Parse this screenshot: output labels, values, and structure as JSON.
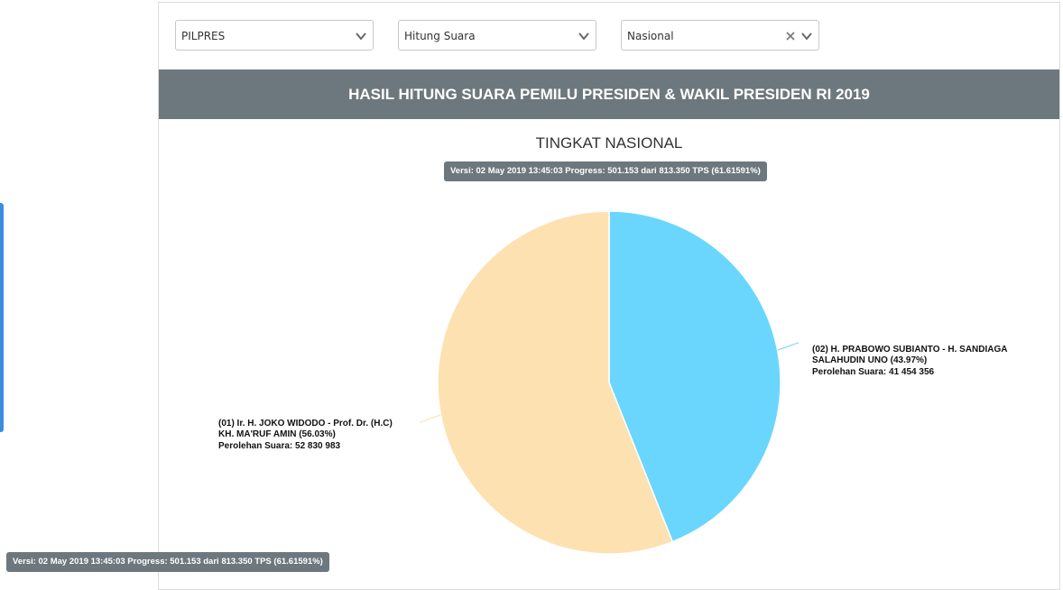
{
  "filters": {
    "election": "PILPRES",
    "mode": "Hitung Suara",
    "region": "Nasional"
  },
  "header": {
    "title": "HASIL HITUNG SUARA PEMILU PRESIDEN & WAKIL PRESIDEN RI 2019"
  },
  "version_badge": "Versi: 02 May 2019 13:45:03 Progress: 501.153 dari 813.350 TPS (61.61591%)",
  "colors": {
    "header": "#6d787e",
    "series_01": "#fde1b1",
    "series_02": "#6ad6fd"
  },
  "chart_data": {
    "type": "pie",
    "title": "TINGKAT NASIONAL",
    "slices": [
      {
        "label_line1": "(01) Ir. H. JOKO WIDODO - Prof. Dr. (H.C)",
        "label_line2": "KH. MA'RUF AMIN (56.03%)",
        "votes_text": "Perolehan Suara: 52 830 983",
        "percent": 56.03,
        "votes": 52830983,
        "color": "#fde1b1"
      },
      {
        "label_line1": "(02) H. PRABOWO SUBIANTO - H. SANDIAGA",
        "label_line2": "SALAHUDIN UNO (43.97%)",
        "votes_text": "Perolehan Suara: 41 454 356",
        "percent": 43.97,
        "votes": 41454356,
        "color": "#6ad6fd"
      }
    ]
  }
}
